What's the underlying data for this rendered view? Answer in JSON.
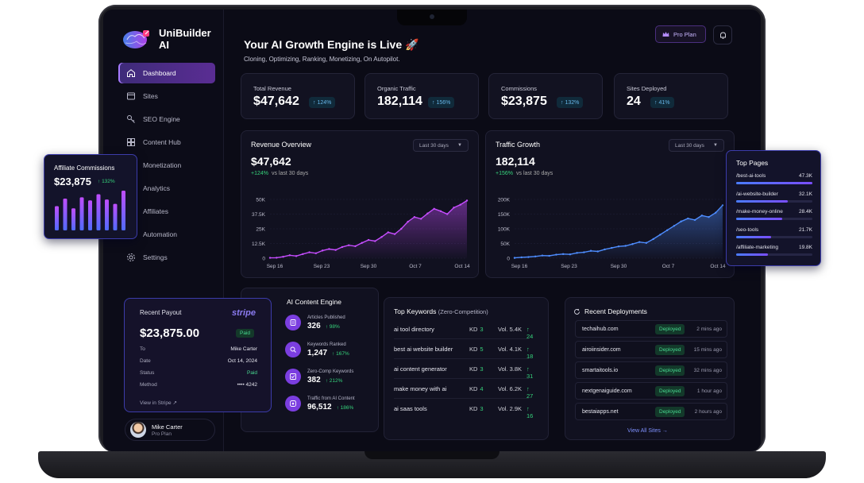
{
  "app": {
    "name": "UniBuilder AI"
  },
  "sidebar": {
    "items": [
      {
        "label": "Dashboard",
        "icon": "home-icon",
        "active": true
      },
      {
        "label": "Sites",
        "icon": "sites-icon"
      },
      {
        "label": "SEO Engine",
        "icon": "key-icon"
      },
      {
        "label": "Content Hub",
        "icon": "content-icon"
      },
      {
        "label": "Monetization",
        "icon": "monetization-icon"
      },
      {
        "label": "Analytics",
        "icon": "analytics-icon"
      },
      {
        "label": "Affiliates",
        "icon": "affiliates-icon"
      },
      {
        "label": "Automation",
        "icon": "automation-icon"
      },
      {
        "label": "Settings",
        "icon": "gear-icon"
      }
    ],
    "user": {
      "name": "Mike Carter",
      "plan": "Pro Plan"
    }
  },
  "header": {
    "title": "Your AI Growth Engine is Live 🚀",
    "subtitle": "Cloning, Optimizing, Ranking, Monetizing, On Autopilot.",
    "pro_plan_label": "Pro Plan"
  },
  "stats": [
    {
      "label": "Total Revenue",
      "value": "$47,642",
      "delta": "124%"
    },
    {
      "label": "Organic Traffic",
      "value": "182,114",
      "delta": "156%"
    },
    {
      "label": "Commissions",
      "value": "$23,875",
      "delta": "132%"
    },
    {
      "label": "Sites Deployed",
      "value": "24",
      "delta": "41%"
    }
  ],
  "revenue_chart": {
    "title": "Revenue Overview",
    "range": "Last 30 days",
    "value": "$47,642",
    "delta": "+124%",
    "delta_note": "vs last 30 days"
  },
  "traffic_chart": {
    "title": "Traffic Growth",
    "range": "Last 30 days",
    "value": "182,114",
    "delta": "+156%",
    "delta_note": "vs last 30 days"
  },
  "chart_data": [
    {
      "type": "area",
      "title": "Revenue Overview",
      "x_ticks": [
        "Sep 16",
        "Sep 23",
        "Sep 30",
        "Oct 7",
        "Oct 14"
      ],
      "y_ticks": [
        "0",
        "12.5K",
        "25K",
        "37.5K",
        "50K"
      ],
      "ylim": [
        0,
        50000
      ],
      "x": [
        0,
        1,
        2,
        3,
        4,
        5,
        6,
        7,
        8,
        9,
        10,
        11,
        12,
        13,
        14,
        15,
        16,
        17,
        18,
        19,
        20,
        21,
        22,
        23,
        24,
        25,
        26,
        27,
        28,
        29,
        30
      ],
      "values": [
        300,
        400,
        1200,
        2500,
        1800,
        3500,
        5000,
        4200,
        6500,
        7800,
        7000,
        9500,
        11000,
        10200,
        13000,
        15500,
        14500,
        18000,
        22000,
        20500,
        25000,
        31000,
        35000,
        33500,
        38000,
        42000,
        40000,
        37500,
        43000,
        45500,
        49000
      ]
    },
    {
      "type": "area",
      "title": "Traffic Growth",
      "x_ticks": [
        "Sep 16",
        "Sep 23",
        "Sep 30",
        "Oct 7",
        "Oct 14"
      ],
      "y_ticks": [
        "0",
        "50K",
        "100K",
        "150K",
        "200K"
      ],
      "ylim": [
        0,
        200000
      ],
      "x": [
        0,
        1,
        2,
        3,
        4,
        5,
        6,
        7,
        8,
        9,
        10,
        11,
        12,
        13,
        14,
        15,
        16,
        17,
        18,
        19,
        20,
        21,
        22,
        23,
        24,
        25,
        26,
        27,
        28,
        29,
        30
      ],
      "values": [
        1000,
        3000,
        4000,
        6000,
        9000,
        8000,
        12000,
        14000,
        13000,
        18000,
        20000,
        25000,
        23000,
        30000,
        35000,
        40000,
        42000,
        48000,
        55000,
        52000,
        65000,
        80000,
        95000,
        110000,
        125000,
        135000,
        130000,
        145000,
        140000,
        155000,
        180000
      ]
    },
    {
      "type": "bar",
      "title": "Affiliate Commissions",
      "values": [
        55,
        72,
        50,
        75,
        68,
        82,
        70,
        60,
        90
      ]
    }
  ],
  "ai_engine": {
    "title": "AI Content Engine",
    "items": [
      {
        "label": "Articles Published",
        "value": "326",
        "delta": "98%",
        "icon": "article-icon"
      },
      {
        "label": "Keywords Ranked",
        "value": "1,247",
        "delta": "167%",
        "icon": "keyword-icon"
      },
      {
        "label": "Zero-Comp Keywords",
        "value": "382",
        "delta": "212%",
        "icon": "zero-comp-icon"
      },
      {
        "label": "Traffic from AI Content",
        "value": "96,512",
        "delta": "186%",
        "icon": "traffic-icon"
      }
    ]
  },
  "keywords": {
    "title": "Top Keywords",
    "subtitle": "(Zero-Competition)",
    "rows": [
      {
        "keyword": "ai tool directory",
        "kd_label": "KD",
        "kd": "3",
        "vol": "Vol. 5.4K",
        "delta": "24"
      },
      {
        "keyword": "best ai website builder",
        "kd_label": "KD",
        "kd": "5",
        "vol": "Vol. 4.1K",
        "delta": "18"
      },
      {
        "keyword": "ai content generator",
        "kd_label": "KD",
        "kd": "3",
        "vol": "Vol. 3.8K",
        "delta": "31"
      },
      {
        "keyword": "make money with ai",
        "kd_label": "KD",
        "kd": "4",
        "vol": "Vol. 6.2K",
        "delta": "27"
      },
      {
        "keyword": "ai saas tools",
        "kd_label": "KD",
        "kd": "3",
        "vol": "Vol. 2.9K",
        "delta": "16"
      }
    ]
  },
  "deployments": {
    "title": "Recent Deployments",
    "view_all": "View All Sites",
    "rows": [
      {
        "site": "techaihub.com",
        "status": "Deployed",
        "time": "2 mins ago"
      },
      {
        "site": "airoiinsider.com",
        "status": "Deployed",
        "time": "15 mins ago"
      },
      {
        "site": "smartaitools.io",
        "status": "Deployed",
        "time": "32 mins ago"
      },
      {
        "site": "nextgenaiguide.com",
        "status": "Deployed",
        "time": "1 hour ago"
      },
      {
        "site": "bestaiapps.net",
        "status": "Deployed",
        "time": "2 hours ago"
      }
    ]
  },
  "affiliate": {
    "title": "Affiliate Commissions",
    "value": "$23,875",
    "delta": "132%"
  },
  "top_pages": {
    "title": "Top Pages",
    "rows": [
      {
        "path": "/best-ai-tools",
        "value": "47.3K",
        "share": 1.0
      },
      {
        "path": "/ai-website-builder",
        "value": "32.1K",
        "share": 0.68
      },
      {
        "path": "/make-money-online",
        "value": "28.4K",
        "share": 0.6
      },
      {
        "path": "/seo-tools",
        "value": "21.7K",
        "share": 0.46
      },
      {
        "path": "/affiliate-marketing",
        "value": "19.8K",
        "share": 0.42
      }
    ]
  },
  "payout": {
    "title": "Recent Payout",
    "brand": "stripe",
    "amount": "$23,875.00",
    "status_badge": "Paid",
    "rows": [
      {
        "label": "To",
        "value": "Mike Carter"
      },
      {
        "label": "Date",
        "value": "Oct 14, 2024"
      },
      {
        "label": "Status",
        "value": "Paid"
      },
      {
        "label": "Method",
        "value": "•••• 4242"
      }
    ],
    "view_link": "View in Stripe"
  },
  "colors": {
    "accent": "#7b3ee0",
    "green": "#36d47c",
    "revenue_line": "#c64dff",
    "traffic_line": "#4e8dff",
    "panel": "#111120"
  }
}
